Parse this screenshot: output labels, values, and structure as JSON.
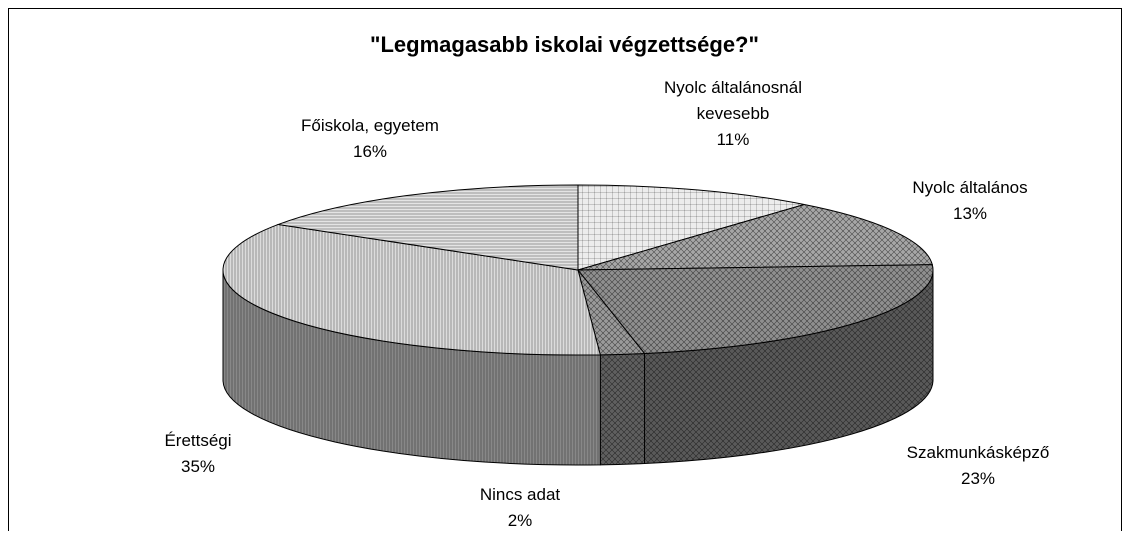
{
  "chart_data": {
    "type": "pie",
    "title": "\"Legmagasabb iskolai végzettsége?\"",
    "categories": [
      "Nyolc általánosnál kevesebb",
      "Nyolc általános",
      "Szakmunkásképző",
      "Nincs adat",
      "Érettségi",
      "Főiskola, egyetem"
    ],
    "values": [
      11,
      13,
      23,
      2,
      35,
      16
    ],
    "value_labels": [
      "11%",
      "13%",
      "23%",
      "2%",
      "35%",
      "16%"
    ],
    "colors": [
      "#ececec",
      "#a6a6a6",
      "#8f8f8f",
      "#9a9a9a",
      "#dcdcdc",
      "#e4e4e4"
    ]
  }
}
